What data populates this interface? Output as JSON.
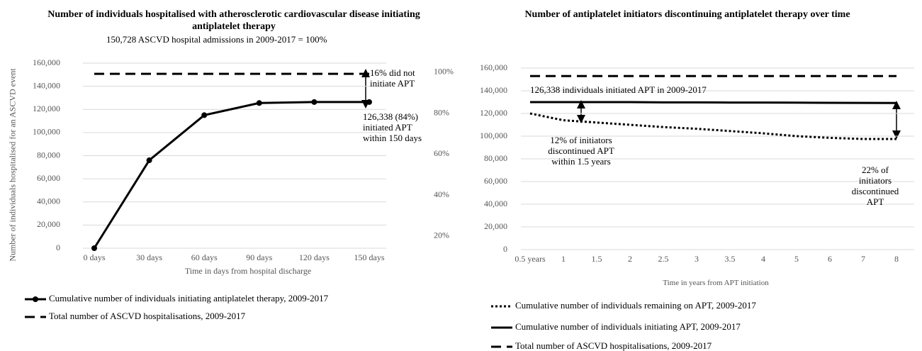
{
  "chart_data": [
    {
      "type": "line",
      "title": "Number of individuals hospitalised with atherosclerotic cardiovascular disease initiating antiplatelet therapy",
      "y_label": "Number of individuals hospitalised for an ASCVD event",
      "x_label": "Time in days from hospital discharge",
      "categories": [
        "0 days",
        "30 days",
        "60 days",
        "90 days",
        "120 days",
        "150 days"
      ],
      "series": [
        {
          "name": "Cumulative number of individuals initiating antiplatelet therapy, 2009-2017",
          "color": "#000000",
          "line_style": "solid",
          "markers": true,
          "values": [
            0,
            76000,
            115000,
            125500,
            126338,
            126338
          ]
        },
        {
          "name": "Total number of ASCVD hospitalisations, 2009-2017",
          "color": "#000000",
          "line_style": "dashed",
          "markers": false,
          "values": [
            150728,
            150728,
            150728,
            150728,
            150728,
            150728
          ]
        }
      ],
      "ylim": [
        0,
        160000
      ],
      "yticks": [
        0,
        {
          "value": 20000,
          "label": "20,000"
        },
        {
          "value": 40000,
          "label": "40,000"
        },
        {
          "value": 60000,
          "label": "60,000"
        },
        {
          "value": 80000,
          "label": "80,000"
        },
        {
          "value": 100000,
          "label": "100,000"
        },
        {
          "value": 120000,
          "label": "120,000"
        },
        {
          "value": 140000,
          "label": "140,000"
        },
        {
          "value": 160000,
          "label": "160,000"
        }
      ],
      "y2lim": [
        14,
        104.5
      ],
      "y2ticks": [
        {
          "value": 20,
          "label": "20%"
        },
        {
          "value": 40,
          "label": "40%"
        },
        {
          "value": 60,
          "label": "60%"
        },
        {
          "value": 80,
          "label": "80%"
        },
        {
          "value": 100,
          "label": "100%"
        }
      ],
      "grid": true,
      "annotations": [
        "150,728 ASCVD hospital admissions in 2009-2017 = 100%",
        "16% did not initiate APT",
        "126,338 (84%) initiated APT within 150 days"
      ]
    },
    {
      "type": "line",
      "title": "Number of antiplatelet initiators discontinuing antiplatelet therapy over time",
      "x_label": "Time in years from APT initiation",
      "categories": [
        "0.5 years",
        "1",
        "1.5",
        "2",
        "2.5",
        "3",
        "3.5",
        "4",
        "5",
        "6",
        "7",
        "8"
      ],
      "series": [
        {
          "name": "Cumulative number of individuals remaining on APT, 2009-2017",
          "color": "#000000",
          "line_style": "dotted",
          "markers": false,
          "values": [
            120000,
            114000,
            112000,
            110000,
            108000,
            106500,
            104500,
            102500,
            100000,
            98500,
            97500,
            97500
          ]
        },
        {
          "name": "Cumulative number of individuals initiating APT, 2009-2017",
          "color": "#000000",
          "line_style": "solid",
          "markers": false,
          "values": [
            130000,
            130000,
            130000,
            130000,
            129800,
            129800,
            129600,
            129600,
            129500,
            129400,
            129300,
            129200
          ]
        },
        {
          "name": "Total number of ASCVD hospitalisations, 2009-2017",
          "color": "#000000",
          "line_style": "dashed",
          "markers": false,
          "values": [
            153000,
            153000,
            153000,
            153000,
            153000,
            153000,
            153000,
            153000,
            153000,
            153000,
            153000,
            153000
          ]
        }
      ],
      "ylim": [
        0,
        160000
      ],
      "yticks": [
        0,
        {
          "value": 20000,
          "label": "20,000"
        },
        {
          "value": 40000,
          "label": "40,000"
        },
        {
          "value": 60000,
          "label": "60,000"
        },
        {
          "value": 80000,
          "label": "80,000"
        },
        {
          "value": 100000,
          "label": "100,000"
        },
        {
          "value": 120000,
          "label": "120,000"
        },
        {
          "value": 140000,
          "label": "140,000"
        },
        {
          "value": 160000,
          "label": "160,000"
        }
      ],
      "grid": true,
      "annotations": [
        "126,338 individuals initiated APT in 2009-2017",
        "12% of initiators discontinued APT within 1.5 years",
        "22% of initiators discontinued APT"
      ]
    }
  ]
}
